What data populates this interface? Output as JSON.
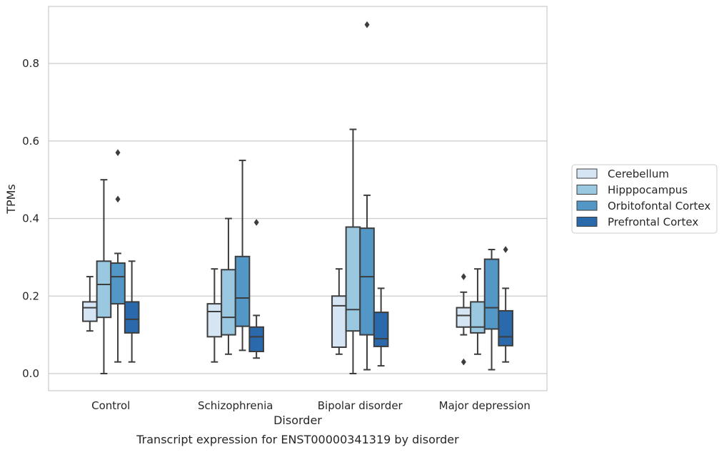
{
  "caption": "Transcript expression for ENST00000341319 by disorder",
  "chart_data": {
    "type": "boxplot",
    "xlabel": "Disorder",
    "ylabel": "TPMs",
    "categories": [
      "Control",
      "Schizophrenia",
      "Bipolar disorder",
      "Major depression"
    ],
    "ylim": [
      -0.04,
      0.95
    ],
    "yticks": [
      "0.0",
      "0.2",
      "0.4",
      "0.6",
      "0.8"
    ],
    "grid": "horizontal",
    "legend_position": "right",
    "series": [
      {
        "name": "Cerebellum",
        "color": "#d6e5f4",
        "boxes": [
          {
            "whisker_low": 0.11,
            "q1": 0.135,
            "median": 0.17,
            "q3": 0.185,
            "whisker_high": 0.25,
            "outliers": []
          },
          {
            "whisker_low": 0.03,
            "q1": 0.095,
            "median": 0.16,
            "q3": 0.18,
            "whisker_high": 0.27,
            "outliers": []
          },
          {
            "whisker_low": 0.05,
            "q1": 0.068,
            "median": 0.175,
            "q3": 0.2,
            "whisker_high": 0.27,
            "outliers": []
          },
          {
            "whisker_low": 0.1,
            "q1": 0.12,
            "median": 0.15,
            "q3": 0.17,
            "whisker_high": 0.21,
            "outliers": [
              0.25,
              0.03
            ]
          }
        ]
      },
      {
        "name": "Hipppocampus",
        "color": "#9ac8e0",
        "boxes": [
          {
            "whisker_low": 0.0,
            "q1": 0.145,
            "median": 0.23,
            "q3": 0.29,
            "whisker_high": 0.5,
            "outliers": []
          },
          {
            "whisker_low": 0.05,
            "q1": 0.1,
            "median": 0.145,
            "q3": 0.268,
            "whisker_high": 0.4,
            "outliers": []
          },
          {
            "whisker_low": 0.0,
            "q1": 0.11,
            "median": 0.165,
            "q3": 0.378,
            "whisker_high": 0.63,
            "outliers": []
          },
          {
            "whisker_low": 0.05,
            "q1": 0.105,
            "median": 0.12,
            "q3": 0.185,
            "whisker_high": 0.27,
            "outliers": []
          }
        ]
      },
      {
        "name": "Orbitofontal Cortex",
        "color": "#5297c6",
        "boxes": [
          {
            "whisker_low": 0.03,
            "q1": 0.18,
            "median": 0.25,
            "q3": 0.285,
            "whisker_high": 0.31,
            "outliers": [
              0.57,
              0.45
            ]
          },
          {
            "whisker_low": 0.06,
            "q1": 0.122,
            "median": 0.195,
            "q3": 0.302,
            "whisker_high": 0.55,
            "outliers": []
          },
          {
            "whisker_low": 0.01,
            "q1": 0.1,
            "median": 0.25,
            "q3": 0.375,
            "whisker_high": 0.46,
            "outliers": [
              0.9
            ]
          },
          {
            "whisker_low": 0.01,
            "q1": 0.115,
            "median": 0.17,
            "q3": 0.295,
            "whisker_high": 0.32,
            "outliers": []
          }
        ]
      },
      {
        "name": "Prefrontal Cortex",
        "color": "#2a69ab",
        "boxes": [
          {
            "whisker_low": 0.03,
            "q1": 0.105,
            "median": 0.14,
            "q3": 0.185,
            "whisker_high": 0.29,
            "outliers": []
          },
          {
            "whisker_low": 0.04,
            "q1": 0.057,
            "median": 0.095,
            "q3": 0.12,
            "whisker_high": 0.15,
            "outliers": [
              0.39
            ]
          },
          {
            "whisker_low": 0.02,
            "q1": 0.07,
            "median": 0.09,
            "q3": 0.158,
            "whisker_high": 0.22,
            "outliers": []
          },
          {
            "whisker_low": 0.03,
            "q1": 0.072,
            "median": 0.095,
            "q3": 0.162,
            "whisker_high": 0.22,
            "outliers": [
              0.32
            ]
          }
        ]
      }
    ]
  }
}
